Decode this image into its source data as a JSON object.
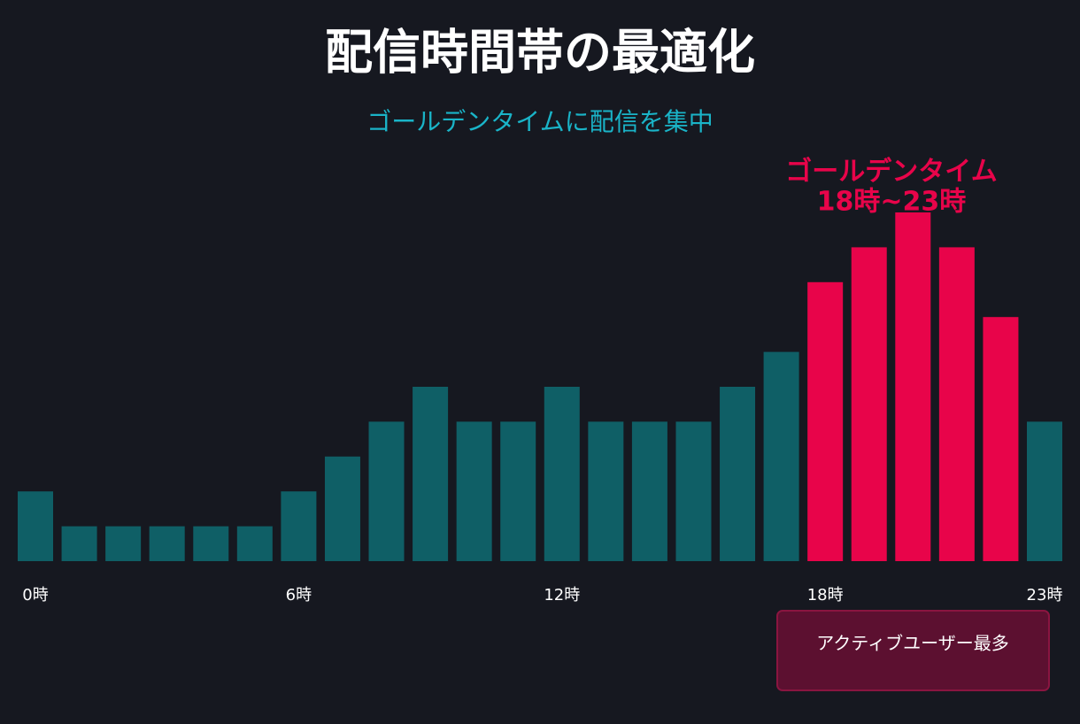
{
  "chart_data": {
    "type": "bar",
    "title": "配信時間帯の最適化",
    "subtitle": "ゴールデンタイムに配信を集中",
    "annotation": [
      "ゴールデンタイム",
      "18時~23時"
    ],
    "note": "アクティブユーザー最多",
    "categories": [
      "0時",
      null,
      null,
      null,
      null,
      null,
      "6時",
      null,
      null,
      null,
      null,
      null,
      "12時",
      null,
      null,
      null,
      null,
      null,
      "18時",
      null,
      null,
      null,
      null,
      "23時"
    ],
    "values": [
      2,
      1,
      1,
      1,
      1,
      1,
      2,
      3,
      4,
      5,
      4,
      4,
      5,
      4,
      4,
      4,
      5,
      6,
      8,
      9,
      10,
      9,
      7,
      4
    ],
    "colors": [
      "#0f5f66",
      "#0f5f66",
      "#0f5f66",
      "#0f5f66",
      "#0f5f66",
      "#0f5f66",
      "#0f5f66",
      "#0f5f66",
      "#0f5f66",
      "#0f5f66",
      "#0f5f66",
      "#0f5f66",
      "#0f5f66",
      "#0f5f66",
      "#0f5f66",
      "#0f5f66",
      "#0f5f66",
      "#0f5f66",
      "#e8044a",
      "#e8044a",
      "#e8044a",
      "#e8044a",
      "#e8044a",
      "#0f5f66"
    ],
    "ylim": [
      0,
      10
    ]
  }
}
